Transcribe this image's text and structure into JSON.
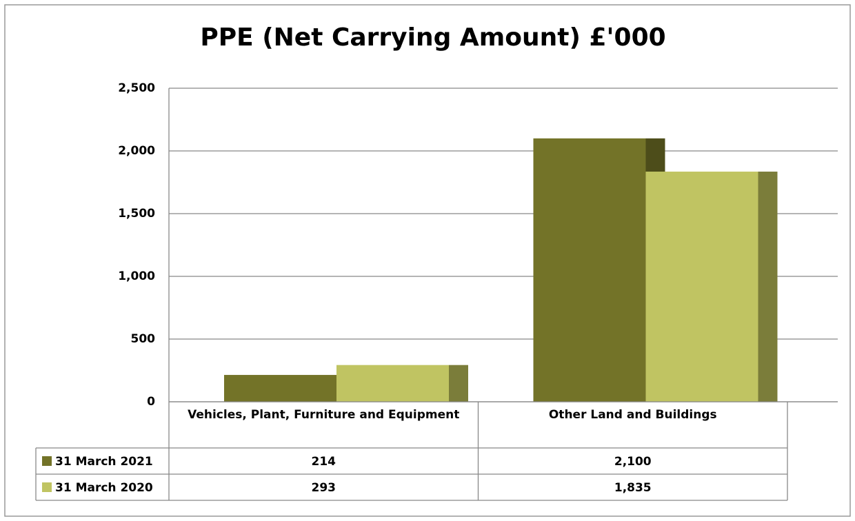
{
  "chart_data": {
    "type": "bar",
    "title": "PPE (Net Carrying Amount) £'000",
    "categories": [
      "Vehicles, Plant, Furniture and Equipment",
      "Other Land and Buildings"
    ],
    "series": [
      {
        "name": "31 March 2021",
        "color": "#737328",
        "side_color": "#4d4d1a",
        "values": [
          214,
          2100
        ],
        "value_labels": [
          "214",
          "2,100"
        ]
      },
      {
        "name": "31 March 2020",
        "color": "#c0c462",
        "side_color": "#7b7d3a",
        "values": [
          293,
          1835
        ],
        "value_labels": [
          "293",
          "1,835"
        ]
      }
    ],
    "ylim": [
      0,
      2500
    ],
    "yticks": [
      0,
      500,
      {
        "value": 1000,
        "label": "1,000"
      },
      {
        "value": 1500,
        "label": "1,500"
      },
      {
        "value": 2000,
        "label": "2,000"
      },
      {
        "value": 2500,
        "label": "2,500"
      }
    ],
    "grid": true
  }
}
